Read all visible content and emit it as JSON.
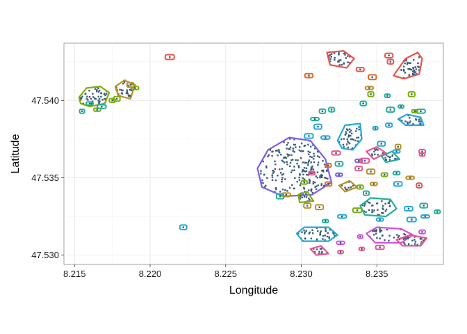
{
  "chart_data": {
    "type": "scatter",
    "title": "",
    "xlabel": "Longitude",
    "ylabel": "Latitude",
    "xlim": [
      8.2143,
      8.2394
    ],
    "ylim": [
      47.5294,
      47.5437
    ],
    "x_ticks": [
      8.215,
      8.22,
      8.225,
      8.23,
      8.235
    ],
    "x_tick_labels": [
      "8.215",
      "8.220",
      "8.225",
      "8.230",
      "8.235"
    ],
    "y_ticks": [
      47.53,
      47.535,
      47.54
    ],
    "y_tick_labels": [
      "47.530",
      "47.535",
      "47.540"
    ],
    "grid": true,
    "legend": "none",
    "point_color": "#3a5a7a",
    "clusters": [
      {
        "color": "#7c5cf0",
        "hull": [
          [
            8.2271,
            47.5356
          ],
          [
            8.2278,
            47.5368
          ],
          [
            8.2292,
            47.5376
          ],
          [
            8.2306,
            47.5374
          ],
          [
            8.2316,
            47.5362
          ],
          [
            8.232,
            47.5347
          ],
          [
            8.2307,
            47.5339
          ],
          [
            8.2288,
            47.5338
          ],
          [
            8.2274,
            47.5344
          ]
        ],
        "n": 220
      },
      {
        "color": "#e8554a",
        "hull": [
          [
            8.2317,
            47.5431
          ],
          [
            8.2319,
            47.5423
          ],
          [
            8.233,
            47.5421
          ],
          [
            8.2335,
            47.5427
          ],
          [
            8.2328,
            47.5432
          ]
        ],
        "n": 30
      },
      {
        "color": "#e8554a",
        "hull": [
          [
            8.2361,
            47.5416
          ],
          [
            8.2369,
            47.5427
          ],
          [
            8.2377,
            47.5431
          ],
          [
            8.238,
            47.5427
          ],
          [
            8.2378,
            47.5417
          ],
          [
            8.2368,
            47.5414
          ]
        ],
        "n": 45
      },
      {
        "color": "#7cae00",
        "hull": [
          [
            8.2153,
            47.5402
          ],
          [
            8.2158,
            47.5408
          ],
          [
            8.2167,
            47.5409
          ],
          [
            8.2173,
            47.5405
          ],
          [
            8.217,
            47.5398
          ],
          [
            8.216,
            47.5396
          ],
          [
            8.2154,
            47.5398
          ]
        ],
        "n": 50
      },
      {
        "color": "#b89020",
        "hull": [
          [
            8.2177,
            47.5409
          ],
          [
            8.2183,
            47.5413
          ],
          [
            8.219,
            47.541
          ],
          [
            8.2187,
            47.5401
          ],
          [
            8.2179,
            47.5403
          ]
        ],
        "n": 35
      },
      {
        "color": "#22a8d8",
        "hull": [
          [
            8.2324,
            47.5374
          ],
          [
            8.2329,
            47.5384
          ],
          [
            8.2339,
            47.5385
          ],
          [
            8.234,
            47.5375
          ],
          [
            8.2334,
            47.5368
          ],
          [
            8.2327,
            47.5369
          ]
        ],
        "n": 40
      },
      {
        "color": "#22a8d8",
        "hull": [
          [
            8.2297,
            47.5314
          ],
          [
            8.2302,
            47.5318
          ],
          [
            8.2318,
            47.5318
          ],
          [
            8.2324,
            47.5313
          ],
          [
            8.2318,
            47.5309
          ],
          [
            8.2301,
            47.5309
          ]
        ],
        "n": 40
      },
      {
        "color": "#20b09a",
        "hull": [
          [
            8.2339,
            47.5332
          ],
          [
            8.2346,
            47.5337
          ],
          [
            8.2359,
            47.5336
          ],
          [
            8.2363,
            47.533
          ],
          [
            8.2356,
            47.5325
          ],
          [
            8.2342,
            47.5326
          ]
        ],
        "n": 35
      },
      {
        "color": "#d050e0",
        "hull": [
          [
            8.2343,
            47.5314
          ],
          [
            8.235,
            47.5318
          ],
          [
            8.2366,
            47.5317
          ],
          [
            8.2374,
            47.5313
          ],
          [
            8.2366,
            47.5308
          ],
          [
            8.2349,
            47.5308
          ]
        ],
        "n": 35
      },
      {
        "color": "#e85590",
        "hull": [
          [
            8.2363,
            47.531
          ],
          [
            8.2372,
            47.5313
          ],
          [
            8.2383,
            47.5311
          ],
          [
            8.2379,
            47.5306
          ],
          [
            8.2367,
            47.5306
          ]
        ],
        "n": 25
      },
      {
        "color": "#e85590",
        "hull": [
          [
            8.2306,
            47.5304
          ],
          [
            8.2313,
            47.5306
          ],
          [
            8.2318,
            47.5301
          ],
          [
            8.231,
            47.53
          ]
        ],
        "n": 12
      },
      {
        "color": "#22a8d8",
        "hull": [
          [
            8.2364,
            47.5388
          ],
          [
            8.237,
            47.5391
          ],
          [
            8.2379,
            47.5389
          ],
          [
            8.2381,
            47.5384
          ],
          [
            8.2369,
            47.5384
          ]
        ],
        "n": 20
      },
      {
        "color": "#7cae00",
        "hull": [
          [
            8.2298,
            47.5339
          ],
          [
            8.2304,
            47.5341
          ],
          [
            8.2308,
            47.5335
          ],
          [
            8.2299,
            47.5334
          ]
        ],
        "n": 12
      },
      {
        "color": "#b89020",
        "hull": [
          [
            8.2325,
            47.5345
          ],
          [
            8.2332,
            47.5348
          ],
          [
            8.2337,
            47.5344
          ],
          [
            8.2329,
            47.5341
          ]
        ],
        "n": 12
      },
      {
        "color": "#20b09a",
        "hull": [
          [
            8.2353,
            47.5364
          ],
          [
            8.236,
            47.5367
          ],
          [
            8.2365,
            47.5362
          ],
          [
            8.2356,
            47.536
          ]
        ],
        "n": 12
      },
      {
        "color": "#e85590",
        "hull": [
          [
            8.2343,
            47.5367
          ],
          [
            8.235,
            47.537
          ],
          [
            8.2356,
            47.5366
          ],
          [
            8.2348,
            47.5362
          ]
        ],
        "n": 12
      }
    ],
    "singletons": [
      {
        "x": 8.2213,
        "y": 47.5428,
        "color": "#e8554a"
      },
      {
        "x": 8.2222,
        "y": 47.5318,
        "color": "#22a8d8"
      },
      {
        "x": 8.2305,
        "y": 47.5416,
        "color": "#e06a20"
      },
      {
        "x": 8.2339,
        "y": 47.542,
        "color": "#e8554a"
      },
      {
        "x": 8.2358,
        "y": 47.5429,
        "color": "#e8554a"
      },
      {
        "x": 8.2359,
        "y": 47.5425,
        "color": "#e8554a"
      },
      {
        "x": 8.2347,
        "y": 47.5415,
        "color": "#e06a20"
      },
      {
        "x": 8.2345,
        "y": 47.5408,
        "color": "#b89020"
      },
      {
        "x": 8.2346,
        "y": 47.5404,
        "color": "#7cae00"
      },
      {
        "x": 8.2357,
        "y": 47.5403,
        "color": "#20b09a"
      },
      {
        "x": 8.2359,
        "y": 47.5394,
        "color": "#20b09a"
      },
      {
        "x": 8.2366,
        "y": 47.5396,
        "color": "#20b09a"
      },
      {
        "x": 8.2373,
        "y": 47.5404,
        "color": "#7cae00"
      },
      {
        "x": 8.2341,
        "y": 47.5398,
        "color": "#20b09a"
      },
      {
        "x": 8.2314,
        "y": 47.5393,
        "color": "#20b09a"
      },
      {
        "x": 8.232,
        "y": 47.5394,
        "color": "#20b09a"
      },
      {
        "x": 8.2309,
        "y": 47.5388,
        "color": "#20b09a"
      },
      {
        "x": 8.2316,
        "y": 47.5376,
        "color": "#22a8d8"
      },
      {
        "x": 8.2323,
        "y": 47.5366,
        "color": "#e85590"
      },
      {
        "x": 8.2318,
        "y": 47.5358,
        "color": "#e06a20"
      },
      {
        "x": 8.2338,
        "y": 47.5361,
        "color": "#7c5cf0"
      },
      {
        "x": 8.2338,
        "y": 47.5356,
        "color": "#e85590"
      },
      {
        "x": 8.2349,
        "y": 47.5382,
        "color": "#22a8d8"
      },
      {
        "x": 8.2358,
        "y": 47.5384,
        "color": "#22a8d8"
      },
      {
        "x": 8.2364,
        "y": 47.537,
        "color": "#b89020"
      },
      {
        "x": 8.238,
        "y": 47.5367,
        "color": "#e85590"
      },
      {
        "x": 8.2342,
        "y": 47.5361,
        "color": "#e85590"
      },
      {
        "x": 8.2346,
        "y": 47.5354,
        "color": "#b89020"
      },
      {
        "x": 8.2355,
        "y": 47.5352,
        "color": "#7cae00"
      },
      {
        "x": 8.2363,
        "y": 47.5353,
        "color": "#20b09a"
      },
      {
        "x": 8.2372,
        "y": 47.535,
        "color": "#b89020"
      },
      {
        "x": 8.2378,
        "y": 47.5345,
        "color": "#e8554a"
      },
      {
        "x": 8.2364,
        "y": 47.5346,
        "color": "#22a8d8"
      },
      {
        "x": 8.2348,
        "y": 47.5346,
        "color": "#b89020"
      },
      {
        "x": 8.2343,
        "y": 47.534,
        "color": "#20b09a"
      },
      {
        "x": 8.2339,
        "y": 47.5344,
        "color": "#7cae00"
      },
      {
        "x": 8.2325,
        "y": 47.5359,
        "color": "#20b09a"
      },
      {
        "x": 8.2318,
        "y": 47.5346,
        "color": "#e06a20"
      },
      {
        "x": 8.2307,
        "y": 47.5353,
        "color": "#e85590"
      },
      {
        "x": 8.2302,
        "y": 47.5347,
        "color": "#7cae00"
      },
      {
        "x": 8.229,
        "y": 47.5339,
        "color": "#b89020"
      },
      {
        "x": 8.2286,
        "y": 47.5338,
        "color": "#20b09a"
      },
      {
        "x": 8.2304,
        "y": 47.5332,
        "color": "#b89020"
      },
      {
        "x": 8.2312,
        "y": 47.5331,
        "color": "#b89020"
      },
      {
        "x": 8.2316,
        "y": 47.5322,
        "color": "#20b09a"
      },
      {
        "x": 8.2327,
        "y": 47.5325,
        "color": "#22a8d8"
      },
      {
        "x": 8.2337,
        "y": 47.5329,
        "color": "#7cae00"
      },
      {
        "x": 8.2352,
        "y": 47.5323,
        "color": "#22a8d8"
      },
      {
        "x": 8.2371,
        "y": 47.533,
        "color": "#22a8d8"
      },
      {
        "x": 8.2373,
        "y": 47.5323,
        "color": "#22a8d8"
      },
      {
        "x": 8.2381,
        "y": 47.5332,
        "color": "#20b09a"
      },
      {
        "x": 8.2382,
        "y": 47.5325,
        "color": "#22a8d8"
      },
      {
        "x": 8.239,
        "y": 47.5328,
        "color": "#20b09a"
      },
      {
        "x": 8.238,
        "y": 47.5315,
        "color": "#d050e0"
      },
      {
        "x": 8.2352,
        "y": 47.5305,
        "color": "#e85590"
      },
      {
        "x": 8.234,
        "y": 47.5304,
        "color": "#e85590"
      },
      {
        "x": 8.2326,
        "y": 47.5302,
        "color": "#e85590"
      },
      {
        "x": 8.2326,
        "y": 47.5308,
        "color": "#d050e0"
      },
      {
        "x": 8.2339,
        "y": 47.5312,
        "color": "#d050e0"
      },
      {
        "x": 8.238,
        "y": 47.5365,
        "color": "#e85590"
      },
      {
        "x": 8.2353,
        "y": 47.5372,
        "color": "#22a8d8"
      },
      {
        "x": 8.2379,
        "y": 47.5393,
        "color": "#20b09a"
      },
      {
        "x": 8.2375,
        "y": 47.5393,
        "color": "#7cae00"
      },
      {
        "x": 8.2363,
        "y": 47.5367,
        "color": "#22a8d8"
      },
      {
        "x": 8.2165,
        "y": 47.5394,
        "color": "#7cae00"
      },
      {
        "x": 8.2155,
        "y": 47.5393,
        "color": "#20b09a"
      },
      {
        "x": 8.216,
        "y": 47.5398,
        "color": "#20b09a"
      },
      {
        "x": 8.2175,
        "y": 47.54,
        "color": "#7cae00"
      },
      {
        "x": 8.2168,
        "y": 47.5396,
        "color": "#20b09a"
      },
      {
        "x": 8.219,
        "y": 47.5408,
        "color": "#7cae00"
      },
      {
        "x": 8.2187,
        "y": 47.541,
        "color": "#b89020"
      },
      {
        "x": 8.2178,
        "y": 47.5401,
        "color": "#7cae00"
      },
      {
        "x": 8.2325,
        "y": 47.5352,
        "color": "#7c5cf0"
      },
      {
        "x": 8.2311,
        "y": 47.5383,
        "color": "#22a8d8"
      },
      {
        "x": 8.2305,
        "y": 47.5377,
        "color": "#22a8d8"
      }
    ]
  }
}
